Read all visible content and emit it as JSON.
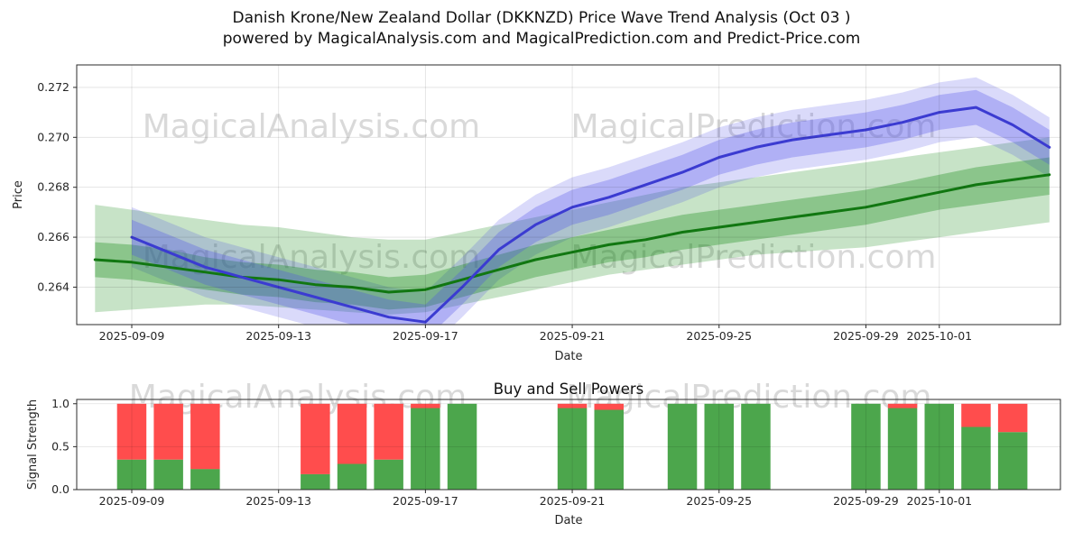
{
  "title": {
    "line1": "Danish Krone/New Zealand Dollar (DKKNZD) Price Wave Trend Analysis (Oct 03 )",
    "line2": "powered by MagicalAnalysis.com and MagicalPrediction.com and Predict-Price.com"
  },
  "watermarks": {
    "left": "MagicalAnalysis.com",
    "right": "MagicalPrediction.com"
  },
  "colors": {
    "axis": "#262626",
    "grid": "rgba(0,0,0,0.12)",
    "border": "#2b2b2b",
    "watermark": "rgba(128,128,128,0.30)",
    "green_line": "#117711",
    "blue_line": "#3b3bd1",
    "buy": "#4ca64c",
    "sell": "#ff4d4d"
  },
  "chart_data": [
    {
      "type": "area",
      "name": "price-wave-trend",
      "xlabel": "Date",
      "ylabel": "Price",
      "xlim": [
        -0.5,
        26.3
      ],
      "ylim": [
        0.2625,
        0.2729
      ],
      "grid": true,
      "yticks": [
        0.264,
        0.266,
        0.268,
        0.27,
        0.272
      ],
      "ytick_labels": [
        "0.264",
        "0.266",
        "0.268",
        "0.270",
        "0.272"
      ],
      "xticks": {
        "positions": [
          1,
          5,
          9,
          13,
          17,
          21,
          23
        ],
        "labels": [
          "2025-09-09",
          "2025-09-13",
          "2025-09-17",
          "2025-09-21",
          "2025-09-25",
          "2025-09-29",
          "2025-10-01"
        ]
      },
      "x": [
        0,
        1,
        2,
        3,
        4,
        5,
        6,
        7,
        8,
        9,
        10,
        11,
        12,
        13,
        14,
        15,
        16,
        17,
        18,
        19,
        20,
        21,
        22,
        23,
        24,
        25,
        26
      ],
      "dates": [
        "2025-09-08",
        "2025-09-09",
        "2025-09-10",
        "2025-09-11",
        "2025-09-12",
        "2025-09-13",
        "2025-09-14",
        "2025-09-15",
        "2025-09-16",
        "2025-09-17",
        "2025-09-18",
        "2025-09-19",
        "2025-09-20",
        "2025-09-21",
        "2025-09-22",
        "2025-09-23",
        "2025-09-24",
        "2025-09-25",
        "2025-09-26",
        "2025-09-27",
        "2025-09-28",
        "2025-09-29",
        "2025-09-30",
        "2025-10-01",
        "2025-10-02",
        "2025-10-03",
        "2025-10-04"
      ],
      "series": [
        {
          "name": "green-trend-band-outer",
          "kind": "band",
          "color": "rgba(0,128,0,0.22)",
          "upper": [
            0.2673,
            0.2671,
            0.2669,
            0.2667,
            0.2665,
            0.2664,
            0.2662,
            0.266,
            0.2659,
            0.2659,
            0.2662,
            0.2665,
            0.2668,
            0.2671,
            0.2674,
            0.2677,
            0.268,
            0.2682,
            0.2684,
            0.2686,
            0.2688,
            0.269,
            0.2692,
            0.2694,
            0.2696,
            0.2698,
            0.27
          ],
          "lower": [
            0.263,
            0.2631,
            0.2632,
            0.2633,
            0.2633,
            0.2632,
            0.2631,
            0.263,
            0.2629,
            0.263,
            0.2633,
            0.2636,
            0.2639,
            0.2642,
            0.2645,
            0.2647,
            0.2649,
            0.2651,
            0.2653,
            0.2654,
            0.2655,
            0.2656,
            0.2658,
            0.266,
            0.2662,
            0.2664,
            0.2666
          ]
        },
        {
          "name": "blue-forecast-band-outer",
          "kind": "band",
          "color": "rgba(70,70,230,0.20)",
          "upper": [
            null,
            0.2672,
            0.2666,
            0.266,
            0.2656,
            0.2652,
            0.2648,
            0.2644,
            0.264,
            0.2638,
            0.2652,
            0.2667,
            0.2677,
            0.2684,
            0.2688,
            0.2693,
            0.2698,
            0.2704,
            0.2708,
            0.2711,
            0.2713,
            0.2715,
            0.2718,
            0.2722,
            0.2724,
            0.2717,
            0.2708
          ],
          "lower": [
            null,
            0.2648,
            0.2642,
            0.2636,
            0.2632,
            0.2628,
            0.2624,
            0.262,
            0.2616,
            0.2614,
            0.2628,
            0.2643,
            0.2653,
            0.266,
            0.2664,
            0.2669,
            0.2674,
            0.268,
            0.2684,
            0.2687,
            0.2689,
            0.2691,
            0.2694,
            0.2698,
            0.27,
            0.2693,
            0.2684
          ]
        },
        {
          "name": "green-trend-band-inner",
          "kind": "band",
          "color": "rgba(0,128,0,0.30)",
          "upper": [
            0.2658,
            0.2657,
            0.2655,
            0.2652,
            0.265,
            0.2649,
            0.2647,
            0.2646,
            0.2644,
            0.2645,
            0.2649,
            0.2653,
            0.2657,
            0.266,
            0.2663,
            0.2666,
            0.2669,
            0.2671,
            0.2673,
            0.2675,
            0.2677,
            0.2679,
            0.2682,
            0.2685,
            0.2688,
            0.269,
            0.2692
          ],
          "lower": [
            0.2644,
            0.2643,
            0.2641,
            0.2639,
            0.2637,
            0.2636,
            0.2634,
            0.2633,
            0.2631,
            0.2632,
            0.2636,
            0.264,
            0.2644,
            0.2647,
            0.265,
            0.2652,
            0.2655,
            0.2657,
            0.2659,
            0.2661,
            0.2663,
            0.2665,
            0.2668,
            0.2671,
            0.2673,
            0.2675,
            0.2677
          ]
        },
        {
          "name": "blue-forecast-band-inner",
          "kind": "band",
          "color": "rgba(80,80,235,0.30)",
          "upper": [
            null,
            0.2667,
            0.2661,
            0.2655,
            0.2651,
            0.2647,
            0.2643,
            0.2639,
            0.2635,
            0.2633,
            0.2647,
            0.2662,
            0.2672,
            0.2679,
            0.2683,
            0.2688,
            0.2693,
            0.2699,
            0.2703,
            0.2706,
            0.2708,
            0.271,
            0.2713,
            0.2717,
            0.2719,
            0.2712,
            0.2703
          ],
          "lower": [
            null,
            0.2653,
            0.2647,
            0.2641,
            0.2637,
            0.2633,
            0.2629,
            0.2625,
            0.2621,
            0.2619,
            0.2633,
            0.2648,
            0.2658,
            0.2665,
            0.2669,
            0.2674,
            0.2679,
            0.2685,
            0.2689,
            0.2692,
            0.2694,
            0.2696,
            0.2699,
            0.2703,
            0.2705,
            0.2698,
            0.2689
          ]
        },
        {
          "name": "green-trend-line",
          "kind": "line",
          "color": "#117711",
          "width": 3,
          "values": [
            0.2651,
            0.265,
            0.2648,
            0.2646,
            0.2644,
            0.2643,
            0.2641,
            0.264,
            0.2638,
            0.2639,
            0.2643,
            0.2647,
            0.2651,
            0.2654,
            0.2657,
            0.2659,
            0.2662,
            0.2664,
            0.2666,
            0.2668,
            0.267,
            0.2672,
            0.2675,
            0.2678,
            0.2681,
            0.2683,
            0.2685
          ]
        },
        {
          "name": "blue-forecast-line",
          "kind": "line",
          "color": "#3b3bd1",
          "width": 3,
          "values": [
            null,
            0.266,
            0.2654,
            0.2648,
            0.2644,
            0.264,
            0.2636,
            0.2632,
            0.2628,
            0.2626,
            0.264,
            0.2655,
            0.2665,
            0.2672,
            0.2676,
            0.2681,
            0.2686,
            0.2692,
            0.2696,
            0.2699,
            0.2701,
            0.2703,
            0.2706,
            0.271,
            0.2712,
            0.2705,
            0.2696
          ]
        }
      ]
    },
    {
      "type": "bar",
      "name": "buy-sell-powers",
      "title": "Buy and Sell Powers",
      "xlabel": "Date",
      "ylabel": "Signal Strength",
      "xlim": [
        -0.5,
        26.3
      ],
      "ylim": [
        0,
        1.05
      ],
      "grid": true,
      "yticks": [
        0.0,
        0.5,
        1.0
      ],
      "ytick_labels": [
        "0.0",
        "0.5",
        "1.0"
      ],
      "xticks": {
        "positions": [
          1,
          5,
          9,
          13,
          17,
          21,
          23
        ],
        "labels": [
          "2025-09-09",
          "2025-09-13",
          "2025-09-17",
          "2025-09-21",
          "2025-09-25",
          "2025-09-29",
          "2025-10-01"
        ]
      },
      "bar_width": 0.8,
      "bars": {
        "x": [
          1,
          2,
          3,
          6,
          7,
          8,
          9,
          10,
          13,
          14,
          16,
          17,
          18,
          21,
          22,
          23,
          24,
          25
        ],
        "dates": [
          "2025-09-09",
          "2025-09-10",
          "2025-09-11",
          "2025-09-14",
          "2025-09-15",
          "2025-09-16",
          "2025-09-17",
          "2025-09-18",
          "2025-09-21",
          "2025-09-22",
          "2025-09-24",
          "2025-09-25",
          "2025-09-26",
          "2025-09-29",
          "2025-09-30",
          "2025-10-01",
          "2025-10-02",
          "2025-10-03"
        ],
        "buy": [
          0.35,
          0.35,
          0.24,
          0.18,
          0.3,
          0.35,
          0.95,
          1.0,
          0.95,
          0.93,
          1.0,
          1.0,
          1.0,
          1.0,
          0.95,
          1.0,
          0.73,
          0.67
        ],
        "sell": [
          0.65,
          0.65,
          0.76,
          0.82,
          0.7,
          0.65,
          0.05,
          0.0,
          0.05,
          0.07,
          0.0,
          0.0,
          0.0,
          0.0,
          0.05,
          0.0,
          0.27,
          0.33
        ]
      }
    }
  ]
}
